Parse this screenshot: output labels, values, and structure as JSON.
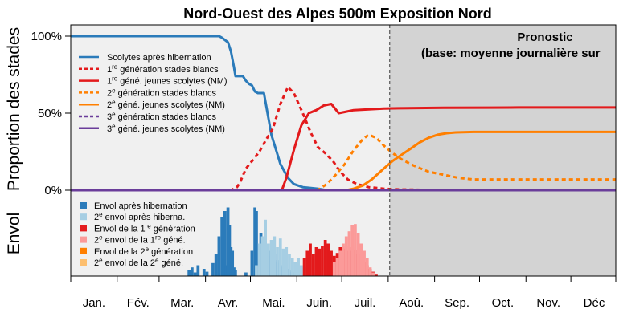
{
  "chart_data": {
    "type": "line",
    "title": "Nord-Ouest des Alpes 500m Exposition Nord",
    "ylabel_top": "Proportion des stades",
    "ylabel_bottom": "Envol",
    "yticks": [
      "100%",
      "50%",
      "0%"
    ],
    "ylim": [
      0,
      1.1
    ],
    "x_unit": "day of year",
    "xlim": [
      1,
      365
    ],
    "months": [
      "Jan.",
      "Fév.",
      "Mar.",
      "Avr.",
      "Mai.",
      "Juin.",
      "Juil.",
      "Aoû.",
      "Sep.",
      "Oct.",
      "Nov.",
      "Déc"
    ],
    "forecast_start_day": 214,
    "forecast_label_line1": "Pronostic",
    "forecast_label_line2": "(base: moyenne journalière sur",
    "colors": {
      "blue": "#2b7bba",
      "light_blue": "#a6cee3",
      "red": "#e31a1c",
      "pink": "#fb9a99",
      "orange": "#ff7f00",
      "light_orange": "#fdbf6f",
      "purple": "#6a3d9a",
      "plot_bg": "#f0f0f0",
      "forecast_bg": "#d3d3d3"
    },
    "series": [
      {
        "name": "Scolytes après hibernation",
        "color": "#2b7bba",
        "dash": "solid",
        "x": [
          1,
          100,
          102,
          106,
          108,
          110,
          111,
          116,
          118,
          120,
          122,
          124,
          126,
          127,
          130,
          135,
          141,
          146,
          150,
          156,
          166,
          172
        ],
        "y": [
          1.0,
          1.0,
          0.99,
          0.96,
          0.9,
          0.8,
          0.74,
          0.74,
          0.71,
          0.69,
          0.68,
          0.64,
          0.63,
          0.63,
          0.63,
          0.36,
          0.17,
          0.08,
          0.04,
          0.02,
          0.01,
          0.0
        ]
      },
      {
        "name": "1re génération stades blancs",
        "color": "#e31a1c",
        "dash": "dashed",
        "x": [
          1,
          108,
          112,
          114,
          118,
          123,
          127,
          131,
          136,
          141,
          146,
          150,
          156,
          161,
          166,
          171,
          176,
          181,
          186,
          192,
          200,
          210,
          220,
          240,
          260,
          365
        ],
        "y": [
          0,
          0,
          0.02,
          0.05,
          0.14,
          0.2,
          0.25,
          0.32,
          0.4,
          0.56,
          0.67,
          0.63,
          0.5,
          0.38,
          0.28,
          0.24,
          0.19,
          0.12,
          0.07,
          0.04,
          0.02,
          0.01,
          0.005,
          0.002,
          0.001,
          0.001
        ]
      },
      {
        "name": "1re géné. jeunes scolytes (NM)",
        "color": "#e31a1c",
        "dash": "solid",
        "x": [
          1,
          142,
          145,
          150,
          155,
          160,
          165,
          170,
          175,
          180,
          185,
          190,
          200,
          210,
          220,
          250,
          280,
          300,
          365
        ],
        "y": [
          0,
          0,
          0.08,
          0.26,
          0.42,
          0.5,
          0.52,
          0.55,
          0.56,
          0.5,
          0.51,
          0.52,
          0.525,
          0.53,
          0.532,
          0.535,
          0.536,
          0.537,
          0.537
        ]
      },
      {
        "name": "2e génération stades blancs",
        "color": "#ff7f00",
        "dash": "dashed",
        "x": [
          1,
          166,
          172,
          178,
          184,
          190,
          196,
          200,
          205,
          210,
          216,
          222,
          230,
          240,
          250,
          260,
          270,
          290,
          320,
          365
        ],
        "y": [
          0,
          0,
          0.04,
          0.1,
          0.17,
          0.26,
          0.33,
          0.36,
          0.34,
          0.29,
          0.24,
          0.2,
          0.16,
          0.12,
          0.1,
          0.08,
          0.07,
          0.07,
          0.07,
          0.07
        ]
      },
      {
        "name": "2e géné. jeunes scolytes (NM)",
        "color": "#ff7f00",
        "dash": "solid",
        "x": [
          1,
          185,
          190,
          196,
          202,
          210,
          216,
          222,
          228,
          234,
          240,
          246,
          252,
          258,
          270,
          300,
          330,
          365
        ],
        "y": [
          0,
          0,
          0.01,
          0.03,
          0.07,
          0.14,
          0.19,
          0.23,
          0.27,
          0.31,
          0.34,
          0.36,
          0.37,
          0.375,
          0.378,
          0.378,
          0.378,
          0.378
        ]
      },
      {
        "name": "3e génération stades blancs",
        "color": "#6a3d9a",
        "dash": "dashed",
        "x": [
          1,
          365
        ],
        "y": [
          0,
          0
        ]
      },
      {
        "name": "3e géné. jeunes scolytes (NM)",
        "color": "#6a3d9a",
        "dash": "solid",
        "x": [
          1,
          365
        ],
        "y": [
          0,
          0
        ]
      }
    ],
    "legend_top": [
      {
        "pre": "Scolytes après hibernation",
        "sup": "",
        "post": "",
        "color": "#2b7bba",
        "dash": "solid"
      },
      {
        "pre": "1",
        "sup": "re",
        "post": " génération stades blancs",
        "color": "#e31a1c",
        "dash": "dashed"
      },
      {
        "pre": "1",
        "sup": "re",
        "post": " géné. jeunes scolytes (NM)",
        "color": "#e31a1c",
        "dash": "solid"
      },
      {
        "pre": "2",
        "sup": "e",
        "post": " génération stades blancs",
        "color": "#ff7f00",
        "dash": "dashed"
      },
      {
        "pre": "2",
        "sup": "e",
        "post": " géné. jeunes scolytes (NM)",
        "color": "#ff7f00",
        "dash": "solid"
      },
      {
        "pre": "3",
        "sup": "e",
        "post": " génération stades blancs",
        "color": "#6a3d9a",
        "dash": "dashed"
      },
      {
        "pre": "3",
        "sup": "e",
        "post": " géné. jeunes scolytes (NM)",
        "color": "#6a3d9a",
        "dash": "solid"
      }
    ],
    "legend_bottom": [
      {
        "pre": "Envol après hibernation",
        "sup": "",
        "post": "",
        "color": "#2b7bba"
      },
      {
        "pre": "2",
        "sup": "e",
        "post": " envol après hiberna.",
        "color": "#a6cee3"
      },
      {
        "pre": "Envol de la 1",
        "sup": "re",
        "post": " génération",
        "color": "#e31a1c"
      },
      {
        "pre": "2",
        "sup": "e",
        "post": " envol de la 1",
        "sup2": "re",
        "post2": " géné.",
        "color": "#fb9a99"
      },
      {
        "pre": "Envol de la 2",
        "sup": "e",
        "post": " génération",
        "color": "#ff7f00"
      },
      {
        "pre": "2",
        "sup": "e",
        "post": " envol de la 2",
        "sup2": "e",
        "post2": " géné.",
        "color": "#fdbf6f"
      }
    ],
    "flight_bars": {
      "units": "relative flight intensity (0-1)",
      "envol_apres_hibernation": {
        "color": "#2b7bba",
        "days": [
          80,
          82,
          84,
          86,
          90,
          92,
          96,
          98,
          100,
          102,
          103,
          104,
          105,
          106,
          107,
          108,
          109,
          110,
          111,
          118,
          122,
          124,
          125,
          128,
          130,
          131,
          132,
          133,
          134,
          135,
          136,
          137,
          138,
          139,
          140,
          141,
          142,
          143,
          144,
          145,
          146,
          147,
          148,
          149,
          150,
          151,
          152,
          153,
          154,
          155,
          156
        ],
        "values": [
          0.08,
          0.12,
          0.05,
          0.15,
          0.1,
          0.06,
          0.18,
          0.3,
          0.55,
          0.82,
          0.25,
          0.9,
          0.15,
          0.95,
          0.7,
          0.4,
          0.35,
          0.12,
          0.08,
          0.05,
          0.35,
          0.95,
          0.9,
          0.6,
          0.55,
          0.45,
          0.4,
          0.3,
          0.35,
          0.28,
          0.25,
          0.3,
          0.2,
          0.22,
          0.18,
          0.15,
          0.12,
          0.15,
          0.12,
          0.1,
          0.1,
          0.08,
          0.06,
          0.05,
          0.05,
          0.04,
          0.03,
          0.03,
          0.02,
          0.02,
          0.01
        ]
      },
      "deuxieme_envol_apres_hibernation": {
        "color": "#a6cee3",
        "days": [
          125,
          127,
          129,
          131,
          133,
          135,
          137,
          139,
          141,
          143,
          145,
          147,
          149,
          151,
          153,
          155,
          157,
          160,
          164
        ],
        "values": [
          0.15,
          0.45,
          0.55,
          0.78,
          0.45,
          0.5,
          0.55,
          0.4,
          0.52,
          0.38,
          0.4,
          0.3,
          0.25,
          0.2,
          0.25,
          0.15,
          0.12,
          0.1,
          0.05
        ]
      },
      "envol_premiere_generation": {
        "color": "#e31a1c",
        "days": [
          157,
          159,
          161,
          163,
          165,
          167,
          169,
          171,
          173,
          175,
          177,
          179,
          181,
          183,
          185,
          187,
          189,
          191,
          193,
          195,
          197,
          199,
          201,
          203,
          205
        ],
        "values": [
          0.25,
          0.35,
          0.45,
          0.3,
          0.4,
          0.38,
          0.42,
          0.5,
          0.45,
          0.35,
          0.28,
          0.32,
          0.4,
          0.38,
          0.42,
          0.35,
          0.4,
          0.36,
          0.3,
          0.25,
          0.2,
          0.15,
          0.1,
          0.06,
          0.02
        ]
      },
      "deuxieme_envol_premiere_generation": {
        "color": "#fb9a99",
        "days": [
          177,
          179,
          181,
          183,
          185,
          187,
          189,
          191,
          193,
          195,
          197,
          199,
          201,
          203
        ],
        "values": [
          0.2,
          0.25,
          0.35,
          0.45,
          0.55,
          0.62,
          0.7,
          0.72,
          0.6,
          0.45,
          0.35,
          0.25,
          0.12,
          0.05
        ]
      }
    }
  }
}
